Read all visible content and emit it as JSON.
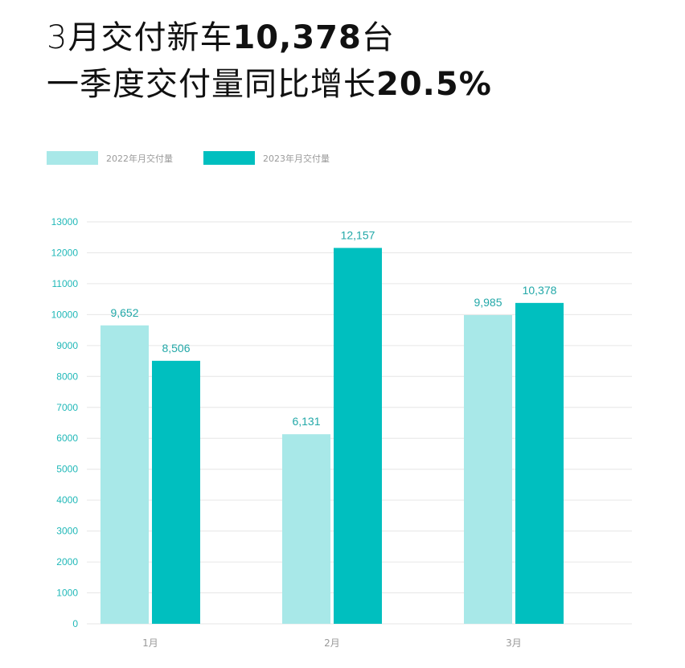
{
  "headline": {
    "line1_text": "3月交付新车",
    "line1_number": "10,378",
    "line1_suffix": "台",
    "line2_text": "一季度交付量同比增长",
    "line2_number": "20.5%"
  },
  "legend": [
    {
      "label": "2022年月交付量",
      "color": "#a8e8e8"
    },
    {
      "label": "2023年月交付量",
      "color": "#00bfbf"
    }
  ],
  "chart_data": {
    "type": "bar",
    "categories": [
      "1月",
      "2月",
      "3月"
    ],
    "series": [
      {
        "name": "2022年月交付量",
        "values": [
          9652,
          6131,
          9985
        ],
        "labels": [
          "9,652",
          "6,131",
          "9,985"
        ],
        "color": "#a8e8e8"
      },
      {
        "name": "2023年月交付量",
        "values": [
          8506,
          12157,
          10378
        ],
        "labels": [
          "8,506",
          "12,157",
          "10,378"
        ],
        "color": "#00bfbf"
      }
    ],
    "ylim": [
      0,
      13000
    ],
    "yticks": [
      "0",
      "1000",
      "2000",
      "3000",
      "4000",
      "5000",
      "6000",
      "7000",
      "8000",
      "9000",
      "10000",
      "11000",
      "12000",
      "13000"
    ],
    "grid": true,
    "legend_position": "top-left"
  }
}
